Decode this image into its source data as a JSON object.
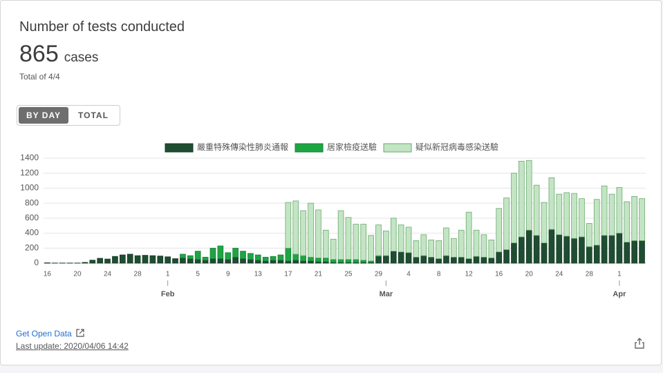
{
  "card": {
    "title": "Number of tests conducted",
    "value": "865",
    "unit": "cases",
    "subtitle": "Total of 4/4",
    "buttons": [
      "BY DAY",
      "TOTAL"
    ],
    "link": "Get Open Data",
    "last_update": "Last update: 2020/04/06 14:42"
  },
  "chart_data": {
    "type": "stacked_bar",
    "categories": [
      "16",
      null,
      null,
      null,
      "20",
      null,
      null,
      null,
      "24",
      null,
      null,
      null,
      "28",
      null,
      null,
      null,
      "1",
      null,
      null,
      null,
      "5",
      null,
      null,
      null,
      "9",
      null,
      null,
      null,
      "13",
      null,
      null,
      null,
      "17",
      null,
      null,
      null,
      "21",
      null,
      null,
      null,
      "25",
      null,
      null,
      null,
      "29",
      null,
      null,
      null,
      "4",
      null,
      null,
      null,
      "8",
      null,
      null,
      null,
      "12",
      null,
      null,
      null,
      "16",
      null,
      null,
      null,
      "20",
      null,
      null,
      null,
      "24",
      null,
      null,
      null,
      "28",
      null,
      null,
      null,
      "1",
      null,
      null,
      null
    ],
    "month_labels": [
      {
        "index": 16,
        "label": "Feb"
      },
      {
        "index": 45,
        "label": "Mar"
      },
      {
        "index": 76,
        "label": "Apr"
      }
    ],
    "series": [
      {
        "name": "嚴重特殊傳染性肺炎通報",
        "color": "#1f4d32",
        "values": [
          5,
          2,
          2,
          2,
          2,
          10,
          40,
          65,
          55,
          90,
          110,
          120,
          100,
          105,
          100,
          95,
          85,
          60,
          70,
          60,
          50,
          40,
          60,
          60,
          50,
          80,
          60,
          50,
          40,
          30,
          40,
          40,
          30,
          40,
          30,
          30,
          20,
          20,
          10,
          10,
          10,
          10,
          10,
          10,
          90,
          100,
          160,
          150,
          140,
          80,
          100,
          80,
          60,
          100,
          80,
          80,
          60,
          90,
          80,
          70,
          150,
          180,
          270,
          350,
          440,
          370,
          270,
          450,
          380,
          360,
          330,
          350,
          220,
          240,
          370,
          370,
          400,
          280,
          300,
          300
        ]
      },
      {
        "name": "居家檢疫送驗",
        "color": "#1ea543",
        "values": [
          0,
          0,
          0,
          0,
          0,
          0,
          0,
          0,
          0,
          0,
          0,
          0,
          0,
          0,
          0,
          0,
          0,
          0,
          50,
          40,
          110,
          40,
          140,
          170,
          90,
          120,
          100,
          80,
          70,
          50,
          50,
          70,
          170,
          80,
          70,
          50,
          50,
          50,
          40,
          40,
          40,
          40,
          30,
          20,
          10,
          0,
          0,
          0,
          0,
          0,
          0,
          0,
          0,
          0,
          0,
          0,
          0,
          0,
          0,
          0,
          0,
          0,
          0,
          0,
          0,
          0,
          0,
          0,
          0,
          0,
          0,
          0,
          0,
          0,
          0,
          0,
          0,
          0,
          0,
          0
        ]
      },
      {
        "name": "疑似新冠病毒感染送驗",
        "color": "#c3e5c4",
        "values": [
          0,
          0,
          0,
          0,
          0,
          0,
          0,
          0,
          0,
          0,
          0,
          0,
          0,
          0,
          0,
          0,
          0,
          0,
          0,
          0,
          0,
          0,
          0,
          0,
          0,
          0,
          0,
          0,
          0,
          0,
          0,
          0,
          610,
          710,
          600,
          720,
          640,
          370,
          270,
          650,
          560,
          470,
          480,
          340,
          410,
          330,
          440,
          360,
          340,
          220,
          280,
          230,
          240,
          370,
          250,
          360,
          620,
          350,
          300,
          240,
          580,
          690,
          930,
          1010,
          930,
          670,
          540,
          690,
          540,
          580,
          600,
          510,
          310,
          610,
          660,
          550,
          610,
          540,
          590,
          560
        ]
      }
    ],
    "ylim": [
      0,
      1400
    ],
    "yticks": [
      0,
      200,
      400,
      600,
      800,
      1000,
      1200,
      1400
    ],
    "grid": true
  }
}
